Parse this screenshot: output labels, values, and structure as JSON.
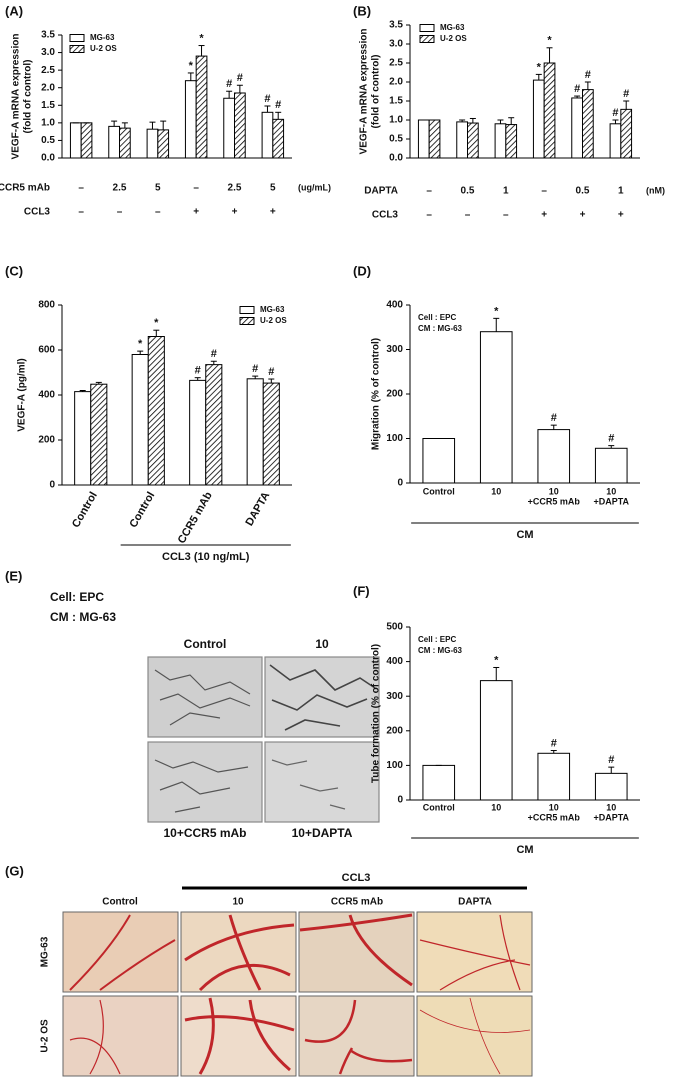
{
  "chart_data": [
    {
      "panel": "(A)",
      "type": "bar",
      "ylabel": "VEGF-A mRNA expression",
      "ylabel_sub": "(fold of control)",
      "ylim": [
        0,
        3.5
      ],
      "yticks": [
        {
          "value": 0,
          "label": "0.0"
        },
        0.5,
        {
          "value": 1,
          "label": "1.0"
        },
        1.5,
        {
          "value": 2,
          "label": "2.0"
        },
        2.5,
        {
          "value": 3,
          "label": "3.0"
        },
        3.5
      ],
      "series": [
        {
          "name": "MG-63",
          "color": "#ffffff",
          "values": [
            1.0,
            0.9,
            0.82,
            2.2,
            1.7,
            1.3
          ],
          "errors": [
            0,
            0.15,
            0.2,
            0.22,
            0.2,
            0.18
          ],
          "markers": [
            null,
            null,
            null,
            "*",
            "#",
            "#"
          ]
        },
        {
          "name": "U-2 OS",
          "color": "#ffffff",
          "hatch": true,
          "values": [
            1.0,
            0.85,
            0.8,
            2.9,
            1.85,
            1.1
          ],
          "errors": [
            0,
            0.15,
            0.25,
            0.3,
            0.22,
            0.2
          ],
          "markers": [
            null,
            null,
            null,
            "*",
            "#",
            "#"
          ]
        }
      ],
      "condition_rows": [
        {
          "name": "CCR5 mAb",
          "labels": [
            "–",
            "2.5",
            "5",
            "–",
            "2.5",
            "5"
          ],
          "unit": "(ug/mL)"
        },
        {
          "name": "CCL3",
          "labels": [
            "–",
            "–",
            "–",
            "+",
            "+",
            "+"
          ]
        }
      ]
    },
    {
      "panel": "(B)",
      "type": "bar",
      "ylabel": "VEGF-A mRNA expression",
      "ylabel_sub": "(fold of control)",
      "ylim": [
        0,
        3.5
      ],
      "yticks": [
        {
          "value": 0,
          "label": "0.0"
        },
        0.5,
        {
          "value": 1,
          "label": "1.0"
        },
        1.5,
        {
          "value": 2,
          "label": "2.0"
        },
        2.5,
        {
          "value": 3,
          "label": "3.0"
        },
        3.5
      ],
      "series": [
        {
          "name": "MG-63",
          "color": "#ffffff",
          "values": [
            1.0,
            0.95,
            0.9,
            2.05,
            1.58,
            0.9
          ],
          "errors": [
            0,
            0.05,
            0.1,
            0.15,
            0.05,
            0.1
          ],
          "markers": [
            null,
            null,
            null,
            "*",
            "#",
            "#"
          ]
        },
        {
          "name": "U-2 OS",
          "color": "#ffffff",
          "hatch": true,
          "values": [
            1.0,
            0.92,
            0.88,
            2.5,
            1.8,
            1.28
          ],
          "errors": [
            0,
            0.12,
            0.18,
            0.4,
            0.2,
            0.22
          ],
          "markers": [
            null,
            null,
            null,
            "*",
            "#",
            "#"
          ]
        }
      ],
      "condition_rows": [
        {
          "name": "DAPTA",
          "labels": [
            "–",
            "0.5",
            "1",
            "–",
            "0.5",
            "1"
          ],
          "unit": "(nM)"
        },
        {
          "name": "CCL3",
          "labels": [
            "–",
            "–",
            "–",
            "+",
            "+",
            "+"
          ]
        }
      ]
    },
    {
      "panel": "(C)",
      "type": "bar",
      "ylabel": "VEGF-A (pg/ml)",
      "ylim": [
        0,
        800
      ],
      "yticks": [
        0,
        200,
        400,
        600,
        800
      ],
      "categories": [
        "Control",
        "Control",
        "CCR5 mAb",
        "DAPTA"
      ],
      "group_label": "CCL3 (10 ng/mL)",
      "series": [
        {
          "name": "MG-63",
          "color": "#ffffff",
          "values": [
            415,
            580,
            465,
            472
          ],
          "errors": [
            5,
            15,
            12,
            12
          ],
          "markers": [
            null,
            "*",
            "#",
            "#"
          ]
        },
        {
          "name": "U-2 OS",
          "color": "#ffffff",
          "hatch": true,
          "values": [
            448,
            660,
            535,
            453
          ],
          "errors": [
            8,
            28,
            15,
            18
          ],
          "markers": [
            null,
            "*",
            "#",
            "#"
          ]
        }
      ]
    },
    {
      "panel": "(D)",
      "type": "bar",
      "ylabel": "Migration (% of control)",
      "ylim": [
        0,
        400
      ],
      "yticks": [
        0,
        100,
        200,
        300,
        400
      ],
      "inset": [
        "Cell : EPC",
        "CM : MG-63"
      ],
      "categories": [
        "Control",
        "10",
        "10",
        "10"
      ],
      "category_sublabels": [
        null,
        null,
        "+CCR5 mAb",
        "+DAPTA"
      ],
      "group_label": "CM",
      "color": "#ffffff",
      "values": [
        100,
        340,
        120,
        78
      ],
      "errors": [
        0,
        30,
        10,
        6
      ],
      "markers": [
        null,
        "*",
        "#",
        "#"
      ]
    },
    {
      "panel": "(F)",
      "type": "bar",
      "ylabel": "Tube formation (% of control)",
      "ylim": [
        0,
        500
      ],
      "yticks": [
        0,
        100,
        200,
        300,
        400,
        500
      ],
      "inset": [
        "Cell : EPC",
        "CM : MG-63"
      ],
      "categories": [
        "Control",
        "10",
        "10",
        "10"
      ],
      "category_sublabels": [
        null,
        null,
        "+CCR5 mAb",
        "+DAPTA"
      ],
      "group_label": "CM",
      "color": "#ffffff",
      "values": [
        100,
        345,
        135,
        77
      ],
      "errors": [
        0,
        38,
        8,
        18
      ],
      "markers": [
        null,
        "*",
        "#",
        "#"
      ]
    }
  ],
  "image_panel_e": {
    "panel": "(E)",
    "cell": "Cell: EPC",
    "cm": "CM : MG-63",
    "top_labels": [
      "Control",
      "10"
    ],
    "bottom_labels": [
      "10+CCR5 mAb",
      "10+DAPTA"
    ]
  },
  "image_panel_g": {
    "panel": "(G)",
    "group_label": "CCL3",
    "columns": [
      "Control",
      "10",
      "CCR5 mAb",
      "DAPTA"
    ],
    "rows": [
      "MG-63",
      "U-2 OS"
    ]
  }
}
